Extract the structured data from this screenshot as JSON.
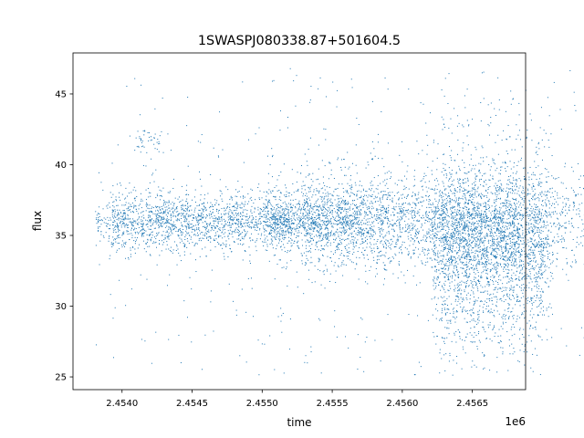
{
  "chart_data": {
    "type": "scatter",
    "title": "1SWASPJ080338.87+501604.5",
    "xlabel": "time",
    "ylabel": "flux",
    "x_offset_label": "1e6",
    "xlim": [
      2.45365,
      2.45688
    ],
    "ylim": [
      24.1,
      47.9
    ],
    "x_ticks": [
      {
        "value": 2.454,
        "label": "2.4540"
      },
      {
        "value": 2.4545,
        "label": "2.4545"
      },
      {
        "value": 2.455,
        "label": "2.4550"
      },
      {
        "value": 2.4555,
        "label": "2.4555"
      },
      {
        "value": 2.456,
        "label": "2.4560"
      },
      {
        "value": 2.4565,
        "label": "2.4565"
      }
    ],
    "y_ticks": [
      {
        "value": 25,
        "label": "25"
      },
      {
        "value": 30,
        "label": "30"
      },
      {
        "value": 35,
        "label": "35"
      },
      {
        "value": 40,
        "label": "40"
      },
      {
        "value": 45,
        "label": "45"
      }
    ],
    "grid": false,
    "marker_color": "#1f77b4",
    "series": [
      {
        "clusters": [
          {
            "x": 2.45383,
            "spread": 0.0,
            "n": 12,
            "center": 35.9,
            "sigma": 0.4,
            "min": 34.1,
            "max": 36.6
          },
          {
            "x": 2.45419,
            "spread": 0.0001,
            "n": 40,
            "center": 41.8,
            "sigma": 0.5,
            "min": 27.1,
            "max": 42.6
          },
          {
            "x": 2.4544,
            "spread": 0.0005,
            "n": 300,
            "center": 36.0,
            "sigma": 1.0,
            "min": 29.0,
            "max": 43.7
          },
          {
            "x": 2.45451,
            "spread": 0.0007,
            "n": 500,
            "center": 36.0,
            "sigma": 1.2,
            "min": 25.8,
            "max": 43.3
          },
          {
            "x": 2.45483,
            "spread": 0.0009,
            "n": 1400,
            "center": 36.0,
            "sigma": 0.9,
            "min": 24.9,
            "max": 46.1
          },
          {
            "x": 2.45513,
            "spread": 0.0001,
            "n": 90,
            "center": 36.0,
            "sigma": 0.5,
            "min": 34.7,
            "max": 37.3
          },
          {
            "x": 2.45594,
            "spread": 0.0009,
            "n": 1600,
            "center": 36.0,
            "sigma": 1.6,
            "min": 24.9,
            "max": 46.8
          },
          {
            "x": 2.4563,
            "spread": 0.001,
            "n": 1600,
            "center": 36.0,
            "sigma": 1.7,
            "min": 25.0,
            "max": 46.7
          },
          {
            "x": 2.45661,
            "spread": 0.0004,
            "n": 1300,
            "center": 33.0,
            "sigma": 3.0,
            "min": 25.1,
            "max": 45.3
          },
          {
            "x": 2.45668,
            "spread": 0.0004,
            "n": 1100,
            "center": 35.0,
            "sigma": 3.0,
            "min": 26.5,
            "max": 44.8
          }
        ]
      }
    ]
  }
}
